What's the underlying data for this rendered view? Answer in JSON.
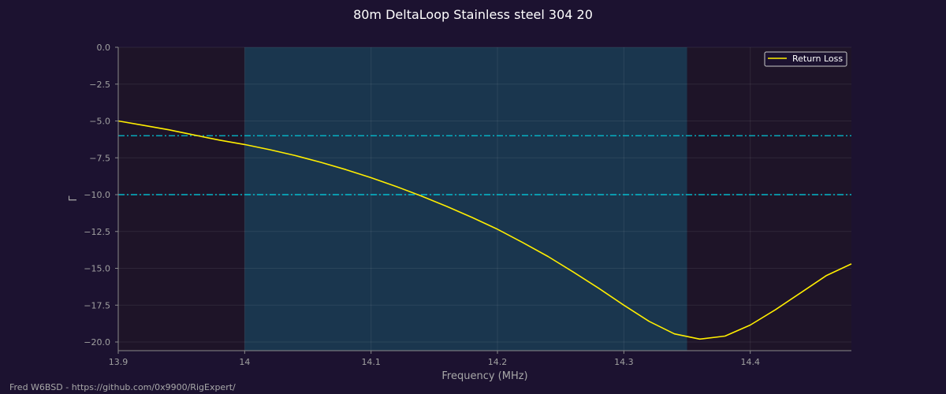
{
  "chart_data": {
    "type": "line",
    "title": "80m DeltaLoop Stainless steel 304 20",
    "xlabel": "Frequency (MHz)",
    "ylabel": "Γ",
    "xlim": [
      13.9,
      14.48
    ],
    "ylim": [
      -20.5,
      0
    ],
    "x_ticks": [
      13.9,
      14.0,
      14.1,
      14.2,
      14.3,
      14.4
    ],
    "x_tick_labels": [
      "13.9",
      "14",
      "14.1",
      "14.2",
      "14.3",
      "14.4"
    ],
    "y_ticks": [
      0,
      -2.5,
      -5,
      -7.5,
      -10,
      -12.5,
      -15,
      -17.5,
      -20
    ],
    "y_tick_labels": [
      "0.0",
      "−2.5",
      "−5.0",
      "−7.5",
      "−10.0",
      "−12.5",
      "−15.0",
      "−17.5",
      "−20.0"
    ],
    "grid": true,
    "legend_position": "top-right",
    "band": {
      "x_start": 14.0,
      "x_end": 14.35,
      "color": "#1a3a52"
    },
    "reference_lines": [
      {
        "y": -6,
        "style": "dashdot",
        "color": "#00d8e8"
      },
      {
        "y": -10,
        "style": "dashdot",
        "color": "#00d8e8"
      }
    ],
    "series": [
      {
        "name": "Return Loss",
        "color": "#ffee00",
        "x": [
          13.9,
          13.92,
          13.94,
          13.96,
          13.98,
          14.0,
          14.02,
          14.04,
          14.06,
          14.08,
          14.1,
          14.12,
          14.14,
          14.16,
          14.18,
          14.2,
          14.22,
          14.24,
          14.26,
          14.28,
          14.3,
          14.32,
          14.34,
          14.36,
          14.38,
          14.4,
          14.42,
          14.44,
          14.46,
          14.48
        ],
        "y": [
          -5.0,
          -5.3,
          -5.6,
          -5.95,
          -6.3,
          -6.6,
          -6.95,
          -7.35,
          -7.8,
          -8.3,
          -8.85,
          -9.45,
          -10.1,
          -10.8,
          -11.55,
          -12.35,
          -13.25,
          -14.2,
          -15.25,
          -16.35,
          -17.5,
          -18.6,
          -19.45,
          -19.8,
          -19.6,
          -18.85,
          -17.8,
          -16.65,
          -15.5,
          -14.7
        ]
      }
    ]
  },
  "footer": {
    "text": "Fred W6BSD - https://github.com/0x9900/RigExpert/"
  }
}
